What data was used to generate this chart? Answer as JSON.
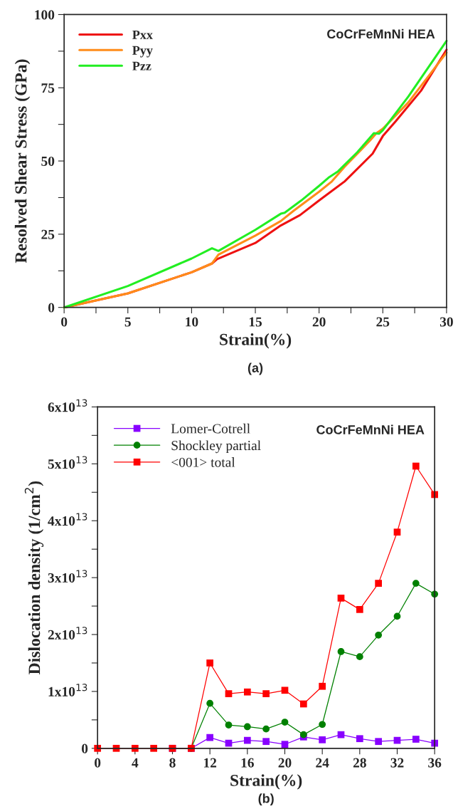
{
  "chart_data": [
    {
      "type": "line",
      "xlabel": "Strain(%)",
      "ylabel": "Resolved Shear Stress (GPa)",
      "annotations": [
        "CoCrFeMnNi HEA",
        "(a)"
      ],
      "legend": "top left",
      "grid": false,
      "xlim": [
        0,
        30
      ],
      "ylim": [
        0,
        100
      ],
      "xticks": [
        0,
        {
          "value": 2.5,
          "label": null
        },
        5,
        {
          "value": 7.5,
          "label": null
        },
        10,
        {
          "value": 12.5,
          "label": null
        },
        15,
        {
          "value": 17.5,
          "label": null
        },
        20,
        {
          "value": 22.5,
          "label": null
        },
        25,
        {
          "value": 27.5,
          "label": null
        },
        30
      ],
      "yticks": [
        0,
        {
          "value": 12.5,
          "label": null
        },
        25,
        {
          "value": 37.5,
          "label": null
        },
        50,
        {
          "value": 62.5,
          "label": null
        },
        75,
        {
          "value": 87.5,
          "label": null
        },
        100
      ],
      "series": [
        {
          "name": "Pxx",
          "color": "#ee1111",
          "x": [
            0,
            5,
            10,
            11.6,
            12,
            15,
            17,
            18.5,
            20,
            22,
            24.2,
            25,
            26,
            28,
            30
          ],
          "values": [
            0,
            4.8,
            12,
            15,
            16.5,
            22,
            28,
            31.5,
            36.5,
            43,
            52.5,
            58.5,
            63.5,
            74,
            88
          ]
        },
        {
          "name": "Pyy",
          "color": "#ff8c1a",
          "x": [
            0,
            5,
            10,
            11.6,
            12.1,
            15,
            17,
            18,
            20,
            21,
            22,
            24,
            24.5,
            25,
            27,
            30
          ],
          "values": [
            0,
            4.8,
            12,
            15,
            18,
            24.5,
            29.5,
            33,
            39.5,
            43,
            48,
            57,
            59.5,
            61,
            70,
            87
          ]
        },
        {
          "name": "Pzz",
          "color": "#22ee22",
          "x": [
            0,
            5,
            10,
            11.6,
            12.1,
            15,
            17,
            17.3,
            18.6,
            20,
            20.8,
            21.5,
            23,
            24.3,
            24.7,
            25,
            27,
            30
          ],
          "values": [
            0,
            7.3,
            16.7,
            20.2,
            19.3,
            26.5,
            32,
            32.3,
            36.5,
            41.5,
            44.5,
            46.5,
            53,
            59.5,
            59.3,
            60.5,
            72,
            91
          ]
        }
      ]
    },
    {
      "type": "line",
      "xlabel": "Strain(%)",
      "ylabel": "Dislocation density (1/cm$^{2}$)",
      "annotations": [
        "CoCrFeMnNi HEA",
        "(b)"
      ],
      "legend": "top left",
      "grid": false,
      "xlim": [
        0,
        36
      ],
      "ylim": [
        0,
        60000000000000.0
      ],
      "xticks": [
        0,
        4,
        8,
        12,
        16,
        20,
        24,
        28,
        32,
        36
      ],
      "yticks": [
        0,
        {
          "value": 5000000000000.0,
          "label": null
        },
        {
          "value": 10000000000000.0,
          "label": "1x10$^{13}$"
        },
        {
          "value": 15000000000000.0,
          "label": null
        },
        {
          "value": 20000000000000.0,
          "label": "2x10$^{13}$"
        },
        {
          "value": 25000000000000.0,
          "label": null
        },
        {
          "value": 30000000000000.0,
          "label": "3x10$^{13}$"
        },
        {
          "value": 35000000000000.0,
          "label": null
        },
        {
          "value": 40000000000000.0,
          "label": "4x10$^{13}$"
        },
        {
          "value": 45000000000000.0,
          "label": null
        },
        {
          "value": 50000000000000.0,
          "label": "5x10$^{13}$"
        },
        {
          "value": 55000000000000.0,
          "label": null
        },
        {
          "value": 60000000000000.0,
          "label": "6x10$^{13}$"
        }
      ],
      "x": [
        0,
        2,
        4,
        6,
        8,
        10,
        12,
        14,
        16,
        18,
        20,
        22,
        24,
        26,
        28,
        30,
        32,
        34,
        36
      ],
      "series": [
        {
          "name": "Lomer-Cotrell",
          "color": "#8800ff",
          "marker": "square",
          "values": [
            null,
            null,
            null,
            null,
            0,
            0,
            1900000000000.0,
            900000000000.0,
            1400000000000.0,
            1200000000000.0,
            700000000000.0,
            2000000000000.0,
            1500000000000.0,
            2400000000000.0,
            1700000000000.0,
            1200000000000.0,
            1400000000000.0,
            1600000000000.0,
            900000000000.0
          ]
        },
        {
          "name": "Shockley partial",
          "color": "#008000",
          "marker": "circle",
          "values": [
            null,
            null,
            null,
            null,
            0,
            0,
            7900000000000.0,
            4100000000000.0,
            3800000000000.0,
            3400000000000.0,
            4600000000000.0,
            2400000000000.0,
            4200000000000.0,
            17000000000000.0,
            16100000000000.0,
            19900000000000.0,
            23200000000000.0,
            29000000000000.0,
            27100000000000.0
          ]
        },
        {
          "name": "<001> total",
          "color": "#ff0000",
          "marker": "square",
          "values": [
            0,
            0,
            0,
            0,
            0,
            0,
            15000000000000.0,
            9600000000000.0,
            9900000000000.0,
            9600000000000.0,
            10200000000000.0,
            7800000000000.0,
            10900000000000.0,
            26400000000000.0,
            24400000000000.0,
            29000000000000.0,
            38000000000000.0,
            49600000000000.0,
            44600000000000.0
          ]
        }
      ]
    }
  ]
}
